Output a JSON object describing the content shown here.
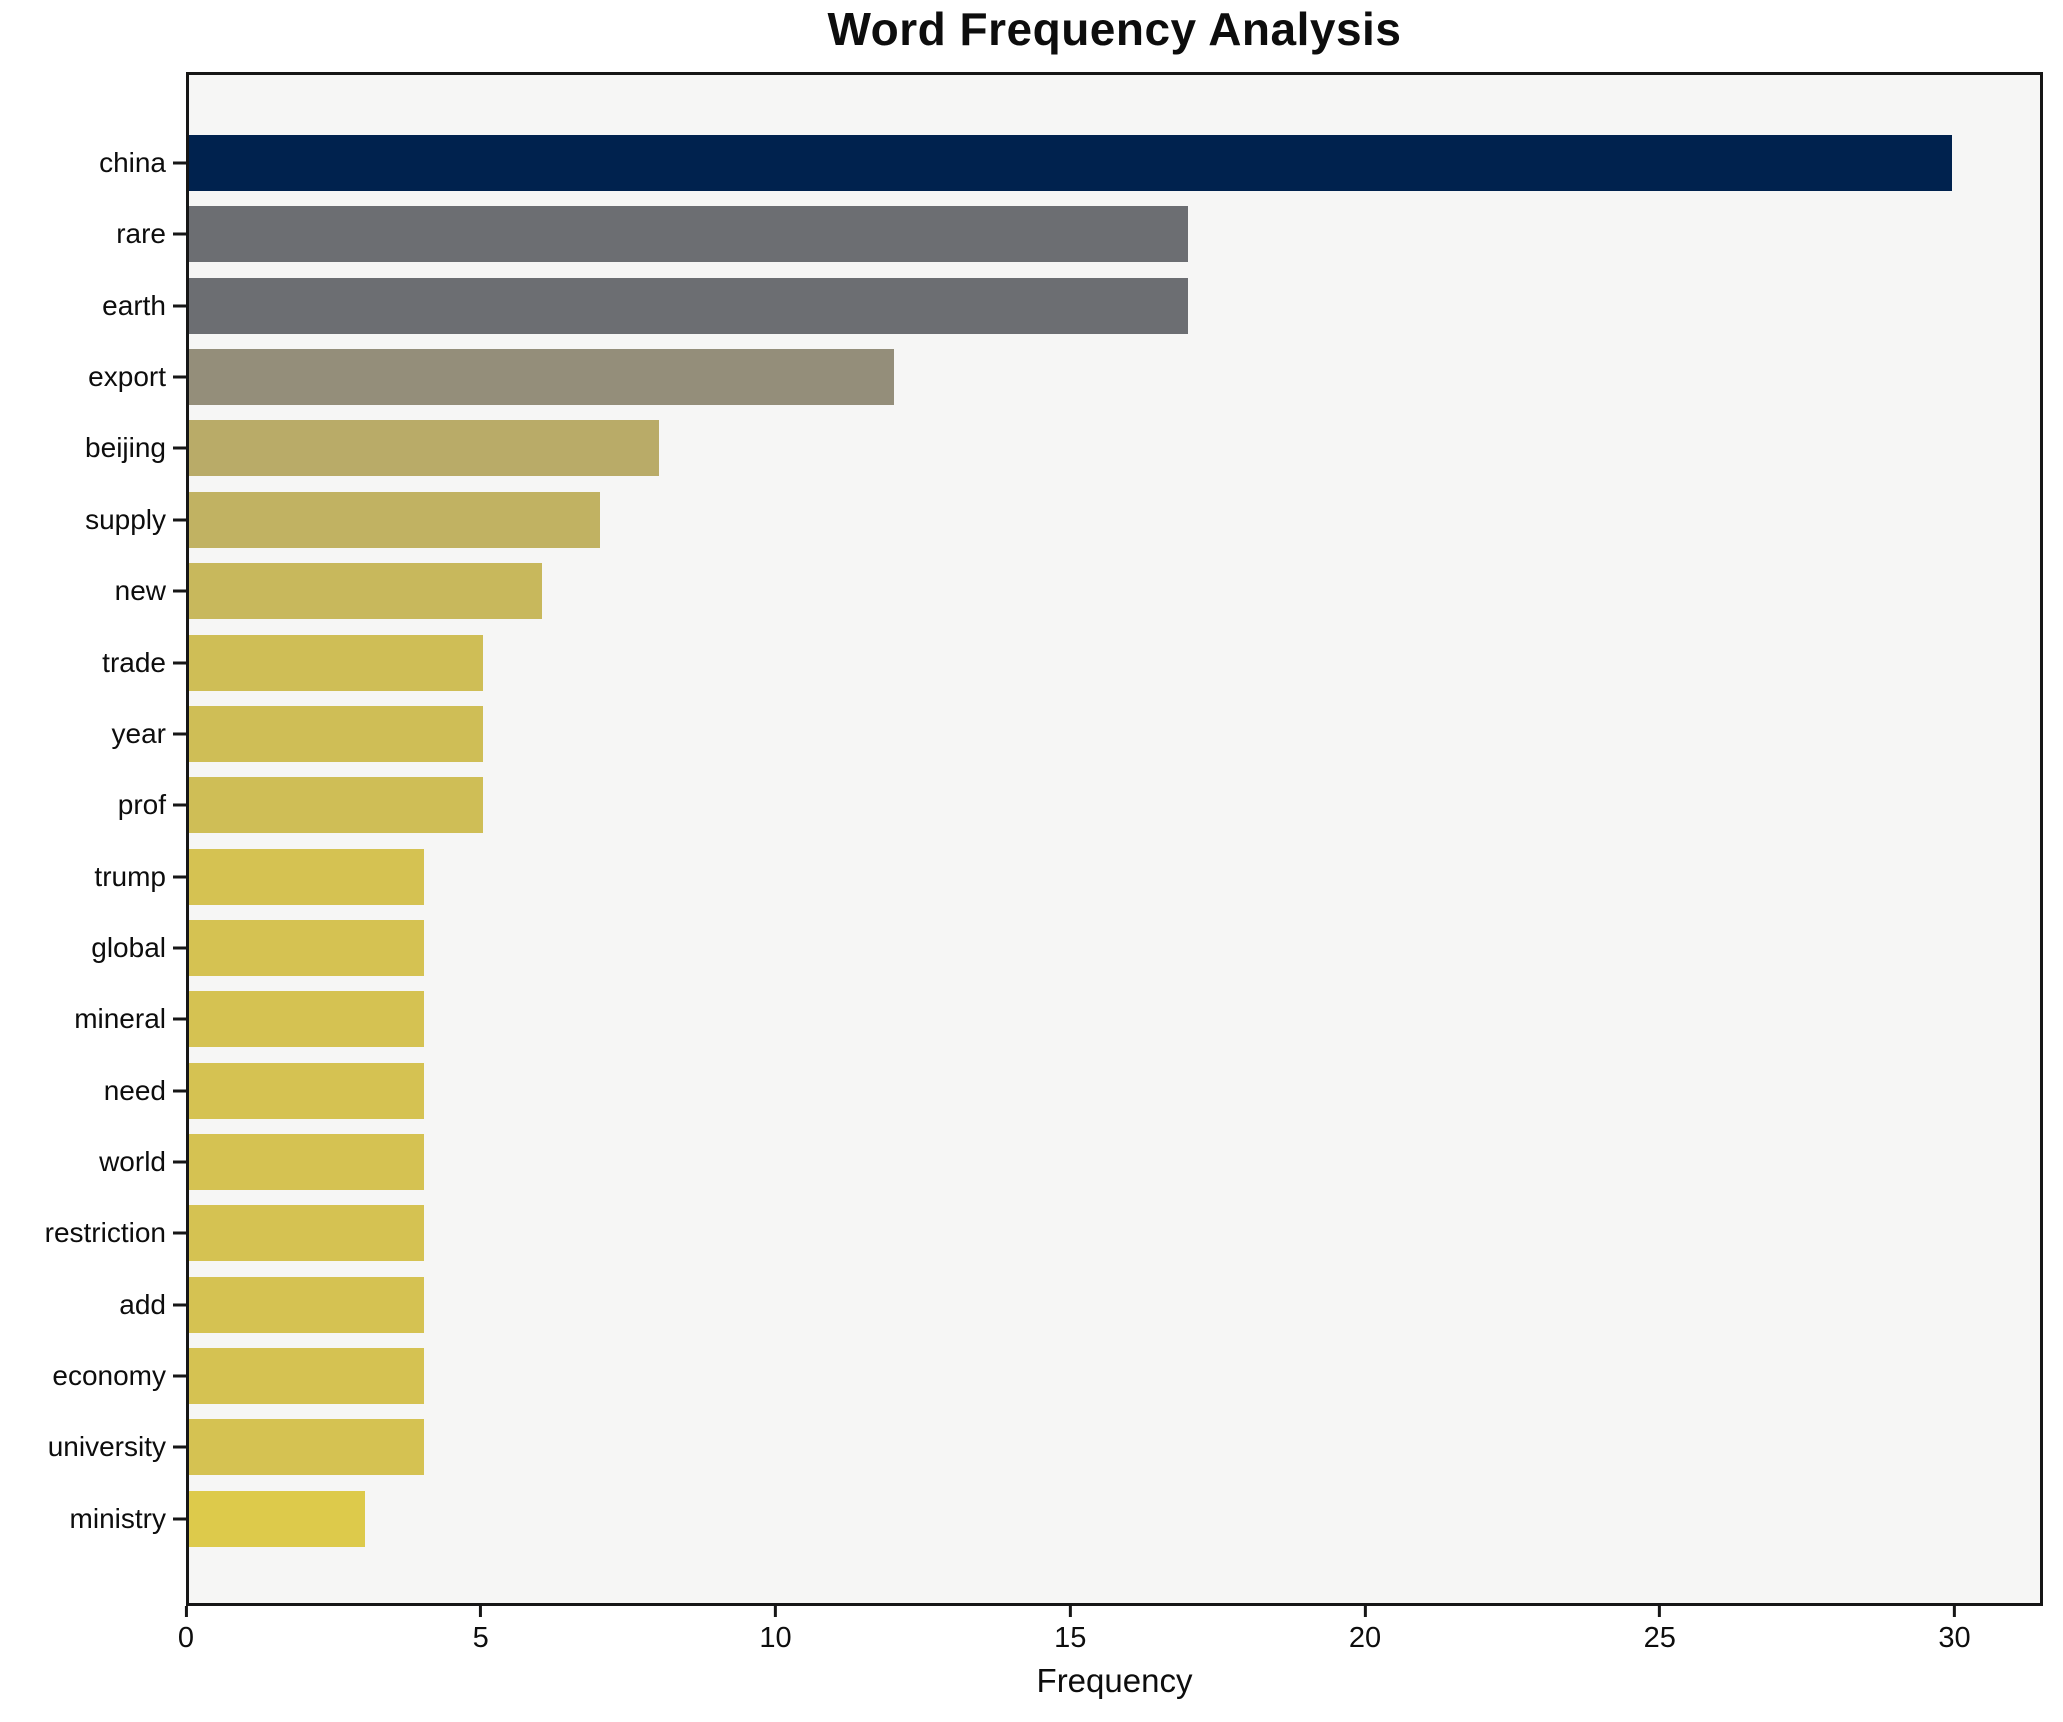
{
  "title": "Word Frequency Analysis",
  "chart_data": {
    "type": "bar",
    "orientation": "horizontal",
    "title": "Word Frequency Analysis",
    "xlabel": "Frequency",
    "ylabel": "",
    "grid": false,
    "legend": "none",
    "plot_background": "#f6f6f5",
    "figure_background": "#ffffff",
    "axis_color": "#161616",
    "xlim": [
      0,
      31.5
    ],
    "xticks": [
      0,
      5,
      10,
      15,
      20,
      25,
      30
    ],
    "categories": [
      "china",
      "rare",
      "earth",
      "export",
      "beijing",
      "supply",
      "new",
      "trade",
      "year",
      "prof",
      "trump",
      "global",
      "mineral",
      "need",
      "world",
      "restriction",
      "add",
      "economy",
      "university",
      "ministry"
    ],
    "values": [
      30,
      17,
      17,
      12,
      8,
      7,
      6,
      5,
      5,
      5,
      4,
      4,
      4,
      4,
      4,
      4,
      4,
      4,
      4,
      3
    ],
    "bar_colors": [
      "#00224e",
      "#6c6e72",
      "#6c6e72",
      "#948e7a",
      "#b9ab68",
      "#c1b262",
      "#c8b85c",
      "#cfbe56",
      "#cfbe56",
      "#cfbe56",
      "#d5c252",
      "#d5c252",
      "#d5c252",
      "#d5c252",
      "#d5c252",
      "#d5c252",
      "#d5c252",
      "#d5c252",
      "#d5c252",
      "#ddca4b"
    ]
  }
}
